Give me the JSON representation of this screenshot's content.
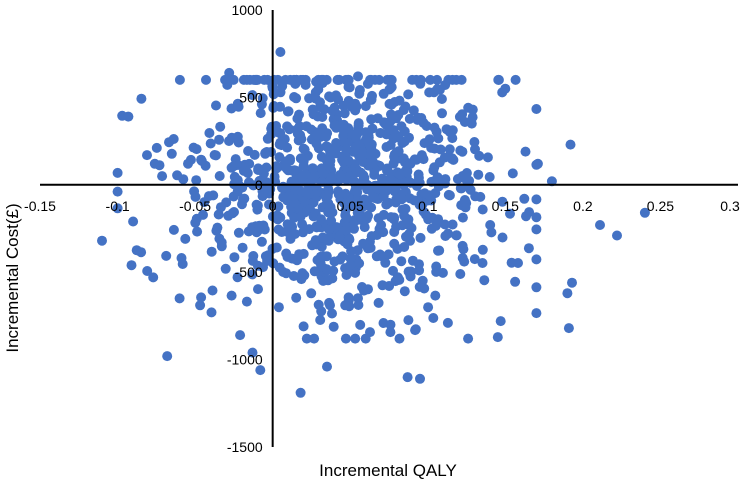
{
  "chart_data": {
    "type": "scatter",
    "xlabel": "Incremental QALY",
    "ylabel": "Incremental Cost(£)",
    "xlim": [
      -0.15,
      0.3
    ],
    "ylim": [
      -1500,
      1000
    ],
    "x_ticks": [
      "-0.15",
      "-0.1",
      "-0.05",
      "0",
      "0.05",
      "0.1",
      "0.15",
      "0.2",
      "0.25",
      "0.3"
    ],
    "x_tick_values": [
      -0.15,
      -0.1,
      -0.05,
      0,
      0.05,
      0.1,
      0.15,
      0.2,
      0.25,
      0.3
    ],
    "y_ticks": [
      "1000",
      "500",
      "0",
      "-500",
      "-1000",
      "-1500"
    ],
    "y_tick_values": [
      1000,
      500,
      0,
      -500,
      -1000,
      -1500
    ],
    "grid": false,
    "legend": "none",
    "marker_color": "#4472C4",
    "point_count": 1000,
    "cloud_center": [
      0.045,
      0
    ],
    "cloud_sd": [
      0.05,
      350
    ],
    "points": [
      [
        0.005,
        760
      ],
      [
        -0.028,
        640
      ],
      [
        -0.093,
        390
      ],
      [
        -0.097,
        395
      ],
      [
        0.192,
        230
      ],
      [
        0.24,
        -160
      ],
      [
        0.222,
        -290
      ],
      [
        0.211,
        -230
      ],
      [
        -0.11,
        -320
      ],
      [
        -0.091,
        -460
      ],
      [
        -0.068,
        -980
      ],
      [
        -0.013,
        -960
      ],
      [
        -0.008,
        -1060
      ],
      [
        0.018,
        -1190
      ],
      [
        0.035,
        -1040
      ],
      [
        0.087,
        -1100
      ],
      [
        0.095,
        -1110
      ],
      [
        0.191,
        -820
      ],
      [
        0.193,
        -560
      ],
      [
        0.19,
        -620
      ],
      [
        0.126,
        -880
      ],
      [
        0.147,
        -780
      ],
      [
        0.15,
        550
      ],
      [
        0.171,
        120
      ],
      [
        0.18,
        20
      ],
      [
        0.163,
        190
      ],
      [
        -0.076,
        120
      ],
      [
        -0.081,
        170
      ],
      [
        -0.09,
        -210
      ],
      [
        -0.077,
        -530
      ],
      [
        0.001,
        530
      ],
      [
        0.028,
        590
      ],
      [
        0.055,
        620
      ],
      [
        0.104,
        530
      ],
      [
        0.129,
        430
      ],
      [
        -0.021,
        -860
      ],
      [
        0.004,
        -700
      ],
      [
        0.06,
        -880
      ],
      [
        0.113,
        -790
      ],
      [
        -0.06,
        -650
      ]
    ]
  }
}
